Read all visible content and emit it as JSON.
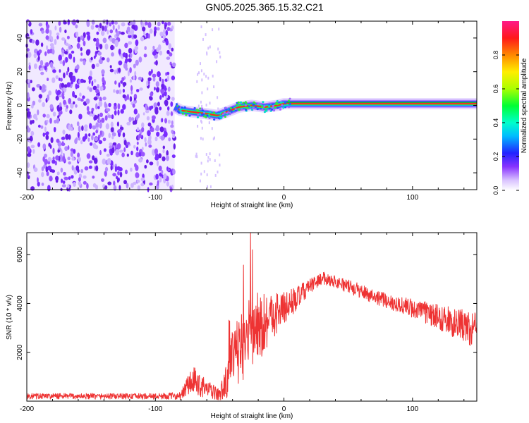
{
  "title": "GN05.2025.365.15.32.C21",
  "chart_data": [
    {
      "type": "heatmap",
      "xlabel": "Height of straight line (km)",
      "ylabel": "Frequency (Hz)",
      "xlim": [
        -200,
        150
      ],
      "ylim": [
        -50,
        50
      ],
      "xticks": [
        -200,
        -100,
        0,
        100
      ],
      "yticks": [
        -40,
        -20,
        0,
        20,
        40
      ],
      "colorbar": {
        "label": "Normalized spectral amplitude",
        "range": [
          0,
          1
        ],
        "ticks": [
          0.0,
          0.2,
          0.4,
          0.6,
          0.8
        ]
      },
      "noise_region_x": [
        -200,
        -85
      ],
      "signal_start_x": -85,
      "signal_track": [
        {
          "x": -85,
          "y": -1
        },
        {
          "x": -80,
          "y": -3
        },
        {
          "x": -70,
          "y": -4
        },
        {
          "x": -60,
          "y": -5
        },
        {
          "x": -52,
          "y": -6
        },
        {
          "x": -45,
          "y": -4
        },
        {
          "x": -35,
          "y": -1
        },
        {
          "x": -25,
          "y": 0
        },
        {
          "x": -15,
          "y": -1
        },
        {
          "x": -5,
          "y": 0
        },
        {
          "x": 0,
          "y": 1
        },
        {
          "x": 50,
          "y": 1
        },
        {
          "x": 150,
          "y": 1
        }
      ]
    },
    {
      "type": "line",
      "xlabel": "Height of straight line (km)",
      "ylabel": "SNR (10 * v/v)",
      "xlim": [
        -200,
        150
      ],
      "ylim": [
        0,
        6900
      ],
      "xticks": [
        -200,
        -100,
        0,
        100
      ],
      "yticks": [
        2000,
        4000,
        6000
      ],
      "series": [
        {
          "color": "#ee3333",
          "x": [
            -200,
            -150,
            -100,
            -80,
            -75,
            -70,
            -60,
            -50,
            -45,
            -40,
            -30,
            -20,
            -10,
            0,
            10,
            20,
            30,
            40,
            60,
            80,
            100,
            120,
            140,
            150
          ],
          "y": [
            200,
            200,
            200,
            220,
            650,
            800,
            500,
            250,
            800,
            1700,
            2500,
            3000,
            3500,
            3800,
            4200,
            4700,
            5050,
            4900,
            4500,
            4100,
            3800,
            3450,
            3050,
            2900
          ],
          "spread": [
            120,
            120,
            120,
            150,
            500,
            600,
            350,
            250,
            700,
            1200,
            1600,
            1500,
            1000,
            700,
            500,
            300,
            250,
            250,
            300,
            300,
            400,
            500,
            700,
            700
          ]
        }
      ]
    }
  ]
}
